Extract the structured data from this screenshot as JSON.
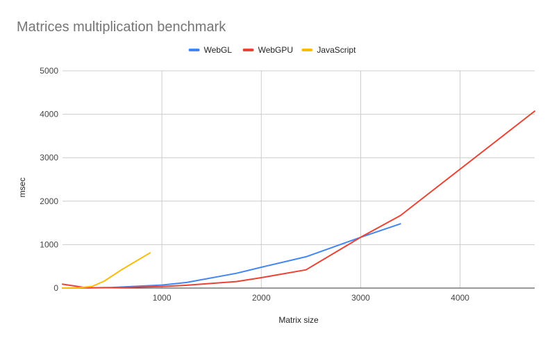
{
  "chart_data": {
    "type": "line",
    "title": "Matrices multiplication benchmark",
    "xlabel": "Matrix size",
    "ylabel": "msec",
    "xlim": [
      0,
      4750
    ],
    "ylim": [
      0,
      5000
    ],
    "xticks": [
      1000,
      2000,
      3000,
      4000
    ],
    "yticks": [
      0,
      1000,
      2000,
      3000,
      4000,
      5000
    ],
    "grid": true,
    "legend_position": "top-center",
    "series": [
      {
        "name": "WebGL",
        "color": "#4285F4",
        "x": [
          0,
          250,
          500,
          1000,
          1250,
          1750,
          2000,
          2450,
          3000,
          3400
        ],
        "y": [
          0,
          5,
          15,
          70,
          130,
          340,
          480,
          720,
          1170,
          1480
        ]
      },
      {
        "name": "WebGPU",
        "color": "#EA4335",
        "x": [
          0,
          250,
          500,
          1000,
          1250,
          1750,
          2000,
          2450,
          3000,
          3400,
          4750
        ],
        "y": [
          90,
          4,
          10,
          35,
          65,
          150,
          240,
          420,
          1170,
          1670,
          4070
        ]
      },
      {
        "name": "JavaScript",
        "color": "#FBBC04",
        "x": [
          0,
          150,
          300,
          420,
          600,
          880
        ],
        "y": [
          0,
          5,
          40,
          160,
          430,
          810
        ]
      }
    ]
  }
}
